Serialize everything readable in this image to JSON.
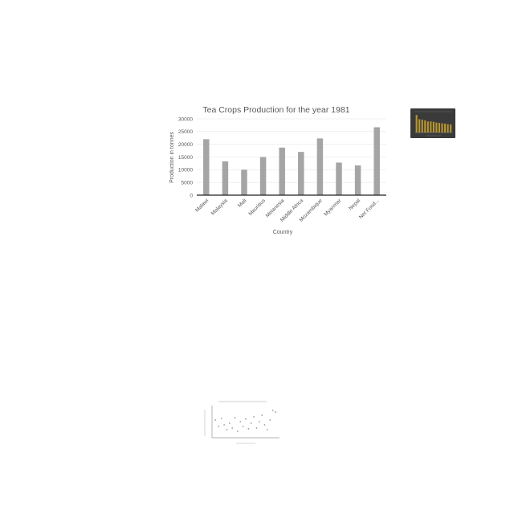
{
  "chart_data": [
    {
      "type": "bar",
      "title": "Tea Crops  Production for the year 1981",
      "xlabel": "Country",
      "ylabel": "Production in tonnes",
      "categories": [
        "Malawi",
        "Malaysia",
        "Mali",
        "Mauritius",
        "Melanesia",
        "Middle Africa",
        "Mozambique",
        "Myanmar",
        "Nepal",
        "Net Food..."
      ],
      "values": [
        22000,
        13300,
        10000,
        15000,
        18700,
        17000,
        22300,
        12800,
        11700,
        26700
      ],
      "ylim": [
        0,
        30000
      ],
      "yticks": [
        "0",
        "5000",
        "10000",
        "15000",
        "20000",
        "25000",
        "30000"
      ],
      "grid": true,
      "colors": {
        "bar": "#a5a5a5",
        "grid": "#e6e6e6",
        "text": "#595959",
        "axis": "#222222"
      }
    }
  ],
  "thumbnails": {
    "dark_bar_chart": {
      "type": "bar",
      "values": [
        0.95,
        0.72,
        0.7,
        0.66,
        0.6,
        0.6,
        0.58,
        0.54,
        0.52,
        0.5,
        0.48,
        0.45,
        0.44
      ],
      "colors": {
        "background": "#3a3a3a",
        "bar": "#b8962e"
      }
    },
    "scatter_plot": {
      "type": "scatter",
      "points": [
        [
          0.05,
          0.55
        ],
        [
          0.1,
          0.35
        ],
        [
          0.14,
          0.6
        ],
        [
          0.18,
          0.4
        ],
        [
          0.22,
          0.25
        ],
        [
          0.26,
          0.45
        ],
        [
          0.3,
          0.3
        ],
        [
          0.34,
          0.62
        ],
        [
          0.38,
          0.2
        ],
        [
          0.42,
          0.5
        ],
        [
          0.46,
          0.35
        ],
        [
          0.5,
          0.58
        ],
        [
          0.54,
          0.28
        ],
        [
          0.58,
          0.45
        ],
        [
          0.62,
          0.65
        ],
        [
          0.66,
          0.3
        ],
        [
          0.7,
          0.5
        ],
        [
          0.74,
          0.7
        ],
        [
          0.78,
          0.4
        ],
        [
          0.82,
          0.25
        ],
        [
          0.86,
          0.55
        ],
        [
          0.9,
          0.85
        ],
        [
          0.94,
          0.8
        ]
      ],
      "colors": {
        "point": "#9a9a9a",
        "axis": "#999999"
      }
    }
  }
}
